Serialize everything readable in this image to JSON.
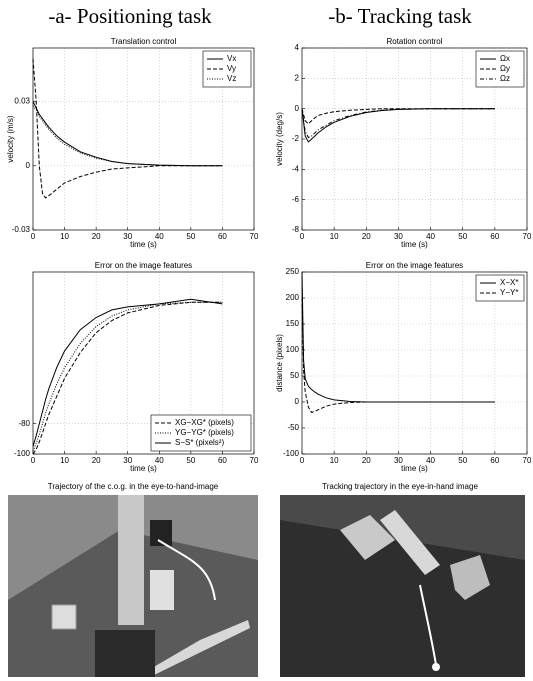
{
  "headings": [
    "-a- Positioning task",
    "-b- Tracking task"
  ],
  "chart_data": [
    {
      "type": "line",
      "title": "Translation control",
      "xlabel": "time (s)",
      "ylabel": "velocity (m/s)",
      "x": [
        0,
        1,
        2,
        3,
        4,
        5,
        7.5,
        10,
        15,
        20,
        25,
        30,
        40,
        50,
        60
      ],
      "xlim": [
        0,
        70
      ],
      "xticks": [
        0,
        10,
        20,
        30,
        40,
        50,
        60,
        70
      ],
      "ylim": [
        -0.03,
        0.055
      ],
      "yticks": [
        -0.03,
        0,
        0.03
      ],
      "grid": true,
      "legend": "upper right",
      "series": [
        {
          "name": "Vx",
          "color": "#000",
          "dash": "solid",
          "values": [
            0.03,
            0.027,
            0.024,
            0.022,
            0.02,
            0.018,
            0.014,
            0.011,
            0.0065,
            0.004,
            0.002,
            0.001,
            0.0003,
            0,
            0
          ]
        },
        {
          "name": "Vy",
          "color": "#000",
          "dash": "dashed",
          "values": [
            0.05,
            0.03,
            0.0,
            -0.013,
            -0.015,
            -0.014,
            -0.011,
            -0.008,
            -0.005,
            -0.003,
            -0.0015,
            -0.001,
            0,
            0,
            0
          ]
        },
        {
          "name": "Vz",
          "color": "#000",
          "dash": "dotted",
          "values": [
            0.028,
            0.026,
            0.023,
            0.021,
            0.019,
            0.017,
            0.013,
            0.01,
            0.006,
            0.0035,
            0.002,
            0.001,
            0.0003,
            0,
            0
          ]
        }
      ]
    },
    {
      "type": "line",
      "title": "Rotation control",
      "xlabel": "time (s)",
      "ylabel": "velocity (deg/s)",
      "x": [
        0,
        1,
        2,
        3,
        4,
        5,
        7.5,
        10,
        15,
        20,
        25,
        30,
        40,
        50,
        60
      ],
      "xlim": [
        0,
        70
      ],
      "xticks": [
        0,
        10,
        20,
        30,
        40,
        50,
        60,
        70
      ],
      "ylim": [
        -8,
        4
      ],
      "yticks": [
        -8,
        -6,
        -4,
        -2,
        0,
        2,
        4
      ],
      "grid": true,
      "legend": "upper right",
      "series": [
        {
          "name": "Ωx",
          "color": "#000",
          "dash": "solid",
          "values": [
            0,
            -1.8,
            -2.2,
            -2.0,
            -1.8,
            -1.6,
            -1.2,
            -0.9,
            -0.5,
            -0.25,
            -0.12,
            -0.05,
            0,
            0,
            0
          ]
        },
        {
          "name": "Ωy",
          "color": "#000",
          "dash": "dashed",
          "values": [
            0,
            -0.8,
            -1.0,
            -0.8,
            -0.6,
            -0.45,
            -0.3,
            -0.2,
            -0.1,
            -0.05,
            0,
            0,
            0,
            0,
            0
          ]
        },
        {
          "name": "Ωz",
          "color": "#000",
          "dash": "dashdot",
          "values": [
            0,
            -1.5,
            -1.9,
            -1.8,
            -1.6,
            -1.4,
            -1.1,
            -0.8,
            -0.45,
            -0.22,
            -0.1,
            -0.04,
            0,
            0,
            0
          ]
        }
      ]
    },
    {
      "type": "line",
      "title": "Error on the image features",
      "xlabel": "time (s)",
      "x": [
        0,
        1,
        2,
        3,
        4,
        5,
        7.5,
        10,
        15,
        20,
        25,
        30,
        40,
        50,
        60
      ],
      "xlim": [
        0,
        70
      ],
      "xticks": [
        0,
        10,
        20,
        30,
        40,
        50,
        60,
        70
      ],
      "ylim": [
        -100,
        20
      ],
      "yticks": [
        -100,
        -80
      ],
      "grid": true,
      "legend": "lower right",
      "series": [
        {
          "name": "XG−XG* (pixels)",
          "color": "#000",
          "dash": "dashed",
          "values": [
            -100,
            -97,
            -92,
            -86,
            -80,
            -74,
            -62,
            -50,
            -33,
            -20,
            -12,
            -7,
            -2,
            0,
            0
          ]
        },
        {
          "name": "YG−YG* (pixels)",
          "color": "#000",
          "dash": "dotted",
          "values": [
            -98,
            -93,
            -87,
            -80,
            -73,
            -67,
            -54,
            -43,
            -27,
            -16,
            -9,
            -5,
            -1,
            0,
            0
          ]
        },
        {
          "name": "S−S* (pixels²)",
          "color": "#000",
          "dash": "solid",
          "values": [
            -95,
            -88,
            -80,
            -72,
            -64,
            -57,
            -43,
            -32,
            -18,
            -10,
            -5,
            -3,
            -1,
            2,
            -1
          ]
        }
      ]
    },
    {
      "type": "line",
      "title": "Error on the image features",
      "xlabel": "time (s)",
      "ylabel": "distance (pixels)",
      "x": [
        0,
        0.5,
        1,
        2,
        3,
        4,
        5,
        7.5,
        10,
        15,
        20,
        30,
        40,
        50,
        60
      ],
      "xlim": [
        0,
        70
      ],
      "xticks": [
        0,
        10,
        20,
        30,
        40,
        50,
        60,
        70
      ],
      "ylim": [
        -100,
        250
      ],
      "yticks": [
        -100,
        -50,
        0,
        50,
        100,
        150,
        200,
        250
      ],
      "grid": true,
      "legend": "upper right",
      "series": [
        {
          "name": "X−X*",
          "color": "#000",
          "dash": "solid",
          "values": [
            250,
            80,
            45,
            30,
            24,
            19,
            15,
            8,
            4,
            1,
            0,
            0,
            0,
            0,
            0
          ]
        },
        {
          "name": "Y−Y*",
          "color": "#000",
          "dash": "dashed",
          "values": [
            200,
            60,
            20,
            -10,
            -20,
            -18,
            -15,
            -8,
            -4,
            -1,
            0,
            0,
            0,
            0,
            0
          ]
        }
      ]
    }
  ],
  "photos": [
    {
      "caption": "Trajectory of the c.o.g. in the eye-to-hand-image"
    },
    {
      "caption": "Tracking trajectory in the eye-in-hand image"
    }
  ]
}
